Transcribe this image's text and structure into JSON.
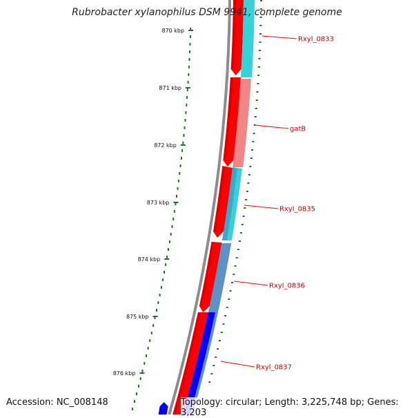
{
  "title": "Rubrobacter xylanophilus DSM 9941, complete genome",
  "footer": {
    "accession": "Accession: NC_008148",
    "topology": "Topology: circular; Length: 3,225,748 bp; Genes: 3,203"
  },
  "colors": {
    "backbone": "#8c8c8c",
    "tick": "#1a7a1a",
    "tick_label": "#111111",
    "gene_label": "#cc0000",
    "label_line": "#ff0000",
    "cds_strand": "#ff0000",
    "cyan": "#2ad0d8",
    "pink": "#f08080",
    "steel": "#4a86c0",
    "blue": "#0000ff"
  },
  "ruler": {
    "ticks": [
      "870 kbp",
      "871 kbp",
      "872 kbp",
      "873 kbp",
      "874 kbp",
      "875 kbp",
      "876 kbp"
    ]
  },
  "gene_labels": [
    "Rxyl_0833",
    "gatB",
    "Rxyl_0835",
    "Rxyl_0836",
    "Rxyl_0837"
  ]
}
